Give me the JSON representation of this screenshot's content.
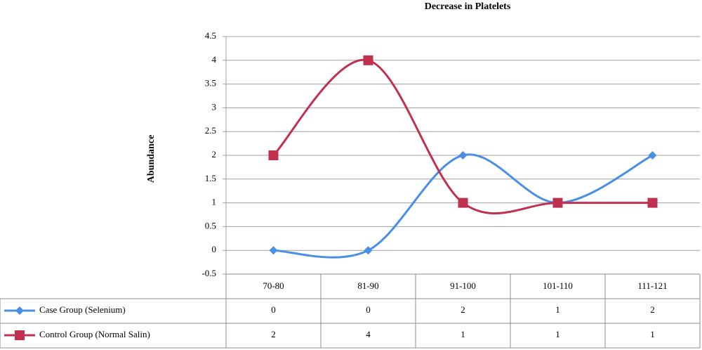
{
  "chart_data": {
    "type": "line",
    "title": "Decrease in Platelets",
    "y_label": "Abundance",
    "categories": [
      "70-80",
      "81-90",
      "91-100",
      "101-110",
      "111-121"
    ],
    "series": [
      {
        "name": "Case Group (Selenium)",
        "color": "#4a8fe3",
        "marker": "diamond",
        "values": [
          0,
          0,
          2,
          1,
          2
        ]
      },
      {
        "name": "Control Group (Normal Salin)",
        "color": "#c0304f",
        "marker": "square",
        "values": [
          2,
          4,
          1,
          1,
          1
        ]
      }
    ],
    "ylim": [
      -0.5,
      4.5
    ],
    "yticks": [
      -0.5,
      0,
      0.5,
      1,
      1.5,
      2,
      2.5,
      3,
      3.5,
      4,
      4.5
    ],
    "grid": true,
    "smooth": true
  }
}
